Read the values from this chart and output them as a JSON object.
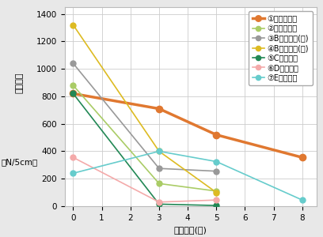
{
  "xlabel": "設置年数(年)",
  "ylabel_top": "引張強度",
  "ylabel_bottom": "（N/5cm）",
  "xlim": [
    -0.3,
    8.5
  ],
  "ylim": [
    0,
    1450
  ],
  "yticks": [
    0,
    200,
    400,
    600,
    800,
    1000,
    1200,
    1400
  ],
  "xticks": [
    0,
    1,
    2,
    3,
    4,
    5,
    6,
    7,
    8
  ],
  "series": [
    {
      "label": "①当社シート",
      "x": [
        0,
        3,
        5,
        8
      ],
      "y": [
        820,
        710,
        520,
        355
      ],
      "color": "#E07830",
      "marker": "o",
      "linewidth": 2.5,
      "markersize": 6
    },
    {
      "label": "②Ａ社シート",
      "x": [
        0,
        3,
        5
      ],
      "y": [
        880,
        165,
        110
      ],
      "color": "#AACC66",
      "marker": "o",
      "linewidth": 1.2,
      "markersize": 5
    },
    {
      "label": "③B社シート(黒)",
      "x": [
        0,
        3,
        5
      ],
      "y": [
        1040,
        275,
        255
      ],
      "color": "#999999",
      "marker": "o",
      "linewidth": 1.2,
      "markersize": 5
    },
    {
      "label": "④B社シート(緑)",
      "x": [
        0,
        3,
        5
      ],
      "y": [
        1320,
        400,
        100
      ],
      "color": "#DDBB22",
      "marker": "o",
      "linewidth": 1.2,
      "markersize": 5
    },
    {
      "label": "⑤C社シート",
      "x": [
        0,
        3,
        5
      ],
      "y": [
        820,
        15,
        5
      ],
      "color": "#228855",
      "marker": "o",
      "linewidth": 1.2,
      "markersize": 5
    },
    {
      "label": "⑥D社シート",
      "x": [
        0,
        3,
        5
      ],
      "y": [
        355,
        30,
        45
      ],
      "color": "#F4AAAA",
      "marker": "o",
      "linewidth": 1.2,
      "markersize": 5
    },
    {
      "label": "⑦E社シート",
      "x": [
        0,
        3,
        5,
        8
      ],
      "y": [
        240,
        400,
        325,
        45
      ],
      "color": "#66CCCC",
      "marker": "o",
      "linewidth": 1.2,
      "markersize": 5
    }
  ],
  "legend_fontsize": 7,
  "axis_fontsize": 8,
  "tick_fontsize": 7.5,
  "fig_bg_color": "#e8e8e8",
  "plot_bg": "#ffffff"
}
